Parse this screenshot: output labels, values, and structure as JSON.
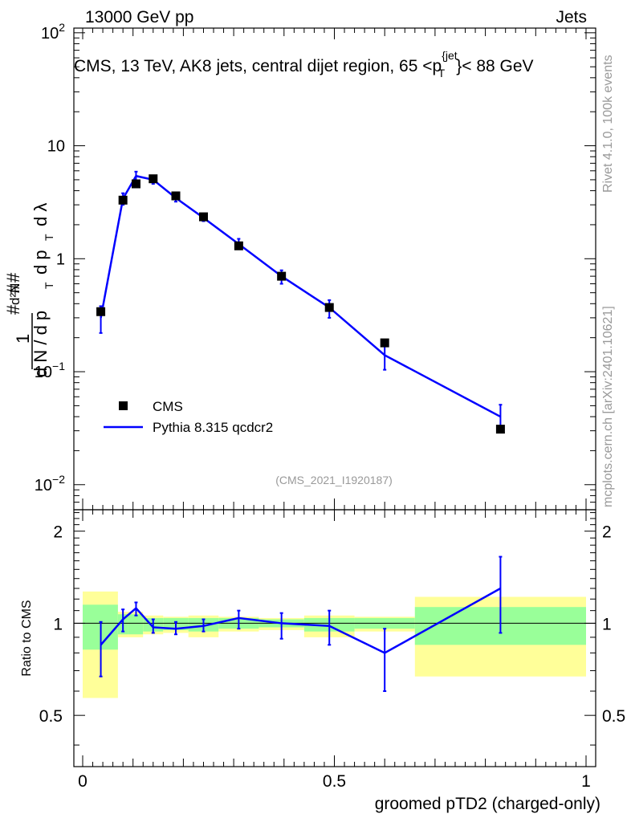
{
  "header": {
    "left": "13000 GeV pp",
    "right": "Jets"
  },
  "side_labels": {
    "rivet": "Rivet 4.1.0,  100k events",
    "mcplots": "mcplots.cern.ch [arXiv:2401.10621]"
  },
  "colors": {
    "cms": "#000000",
    "pythia": "#0000ff",
    "band_inner": "#99ff99",
    "band_outer": "#ffff99"
  },
  "chart_data": {
    "type": "scatter",
    "title": "CMS, 13 TeV, AK8 jets, central dijet region, 65 <p_T^{jet}< 88 GeV",
    "title_parts": {
      "main": "CMS, 13 TeV, AK8 jets, central dijet region, 65 <p",
      "sup": "{jet",
      "sub": "T",
      "tail": "}< 88 GeV"
    },
    "analysis_tag": "(CMS_2021_I1920187)",
    "ylabel_parts": {
      "hash1": "#",
      "one": "1",
      "dN": "d N / d p",
      "T1": "T",
      "hash2": "#",
      "dp": "d p",
      "T2": "T",
      "hash3": "#",
      "d2N": "d²N",
      "dlambda": "d λ"
    },
    "xlabel": "groomed pTD2 (charged-only)",
    "ratio_ylabel": "Ratio to CMS",
    "xlim": [
      0,
      1
    ],
    "ylim": [
      0.006,
      110
    ],
    "ylog": true,
    "ratio_ylim": [
      0.34,
      2.35
    ],
    "x_ticks": [
      {
        "v": 0,
        "label": "0"
      },
      {
        "v": 0.5,
        "label": "0.5"
      },
      {
        "v": 1,
        "label": "1"
      }
    ],
    "y_ticks": [
      {
        "v": 0.01,
        "base": "10",
        "exp": "−2"
      },
      {
        "v": 0.1,
        "base": "10",
        "exp": "−1"
      },
      {
        "v": 1,
        "base": "1",
        "exp": ""
      },
      {
        "v": 10,
        "base": "10",
        "exp": ""
      },
      {
        "v": 100,
        "base": "10",
        "exp": "2"
      }
    ],
    "ratio_ticks": [
      {
        "v": 0.5,
        "label": "0.5"
      },
      {
        "v": 1,
        "label": "1"
      },
      {
        "v": 2,
        "label": "2"
      }
    ],
    "legend": [
      {
        "name": "CMS",
        "marker": "square"
      },
      {
        "name": "Pythia 8.315 qcdcr2",
        "marker": "line"
      }
    ],
    "series": [
      {
        "name": "CMS",
        "points": [
          {
            "x": 0.036,
            "y": 0.34
          },
          {
            "x": 0.08,
            "y": 3.3
          },
          {
            "x": 0.106,
            "y": 4.6
          },
          {
            "x": 0.14,
            "y": 5.1
          },
          {
            "x": 0.185,
            "y": 3.6
          },
          {
            "x": 0.24,
            "y": 2.35
          },
          {
            "x": 0.31,
            "y": 1.3
          },
          {
            "x": 0.395,
            "y": 0.7
          },
          {
            "x": 0.49,
            "y": 0.37
          },
          {
            "x": 0.6,
            "y": 0.18
          },
          {
            "x": 0.83,
            "y": 0.031
          }
        ]
      },
      {
        "name": "Pythia 8.315 qcdcr2",
        "points": [
          {
            "x": 0.036,
            "y": 0.3,
            "lo": 0.22,
            "hi": 0.38
          },
          {
            "x": 0.08,
            "y": 3.4,
            "lo": 3.0,
            "hi": 3.8
          },
          {
            "x": 0.106,
            "y": 5.4,
            "lo": 4.9,
            "hi": 5.9
          },
          {
            "x": 0.14,
            "y": 5.0,
            "lo": 4.6,
            "hi": 5.4
          },
          {
            "x": 0.185,
            "y": 3.45,
            "lo": 3.2,
            "hi": 3.7
          },
          {
            "x": 0.24,
            "y": 2.3,
            "lo": 2.15,
            "hi": 2.45
          },
          {
            "x": 0.31,
            "y": 1.35,
            "lo": 1.22,
            "hi": 1.5
          },
          {
            "x": 0.395,
            "y": 0.7,
            "lo": 0.6,
            "hi": 0.79
          },
          {
            "x": 0.49,
            "y": 0.37,
            "lo": 0.3,
            "hi": 0.43
          },
          {
            "x": 0.6,
            "y": 0.14,
            "lo": 0.104,
            "hi": 0.18
          },
          {
            "x": 0.83,
            "y": 0.04,
            "lo": 0.03,
            "hi": 0.051
          }
        ]
      }
    ],
    "ratio_bands": [
      {
        "x0": 0.0,
        "x1": 0.07,
        "inner": [
          0.82,
          1.15
        ],
        "outer": [
          0.57,
          1.27
        ]
      },
      {
        "x0": 0.07,
        "x1": 0.09,
        "inner": [
          0.92,
          1.07
        ],
        "outer": [
          0.9,
          1.09
        ]
      },
      {
        "x0": 0.09,
        "x1": 0.12,
        "inner": [
          0.92,
          1.07
        ],
        "outer": [
          0.9,
          1.09
        ]
      },
      {
        "x0": 0.12,
        "x1": 0.16,
        "inner": [
          0.94,
          1.04
        ],
        "outer": [
          0.92,
          1.06
        ]
      },
      {
        "x0": 0.16,
        "x1": 0.21,
        "inner": [
          0.95,
          1.04
        ],
        "outer": [
          0.93,
          1.05
        ]
      },
      {
        "x0": 0.21,
        "x1": 0.27,
        "inner": [
          0.94,
          1.04
        ],
        "outer": [
          0.9,
          1.06
        ]
      },
      {
        "x0": 0.27,
        "x1": 0.35,
        "inner": [
          0.96,
          1.04
        ],
        "outer": [
          0.94,
          1.05
        ]
      },
      {
        "x0": 0.35,
        "x1": 0.44,
        "inner": [
          0.97,
          1.03
        ],
        "outer": [
          0.95,
          1.04
        ]
      },
      {
        "x0": 0.44,
        "x1": 0.54,
        "inner": [
          0.94,
          1.04
        ],
        "outer": [
          0.9,
          1.06
        ]
      },
      {
        "x0": 0.54,
        "x1": 0.66,
        "inner": [
          0.96,
          1.04
        ],
        "outer": [
          0.94,
          1.05
        ]
      },
      {
        "x0": 0.66,
        "x1": 1.0,
        "inner": [
          0.85,
          1.13
        ],
        "outer": [
          0.67,
          1.22
        ]
      }
    ],
    "ratio_points": [
      {
        "x": 0.036,
        "y": 0.85,
        "lo": 0.67,
        "hi": 1.01
      },
      {
        "x": 0.08,
        "y": 1.03,
        "lo": 0.94,
        "hi": 1.11
      },
      {
        "x": 0.106,
        "y": 1.12,
        "lo": 1.06,
        "hi": 1.17
      },
      {
        "x": 0.14,
        "y": 0.97,
        "lo": 0.93,
        "hi": 1.03
      },
      {
        "x": 0.185,
        "y": 0.96,
        "lo": 0.92,
        "hi": 1.01
      },
      {
        "x": 0.24,
        "y": 0.98,
        "lo": 0.94,
        "hi": 1.03
      },
      {
        "x": 0.31,
        "y": 1.04,
        "lo": 0.96,
        "hi": 1.1
      },
      {
        "x": 0.395,
        "y": 1.0,
        "lo": 0.89,
        "hi": 1.08
      },
      {
        "x": 0.49,
        "y": 0.98,
        "lo": 0.85,
        "hi": 1.1
      },
      {
        "x": 0.6,
        "y": 0.8,
        "lo": 0.6,
        "hi": 0.96
      },
      {
        "x": 0.83,
        "y": 1.3,
        "lo": 0.93,
        "hi": 1.65
      }
    ]
  }
}
